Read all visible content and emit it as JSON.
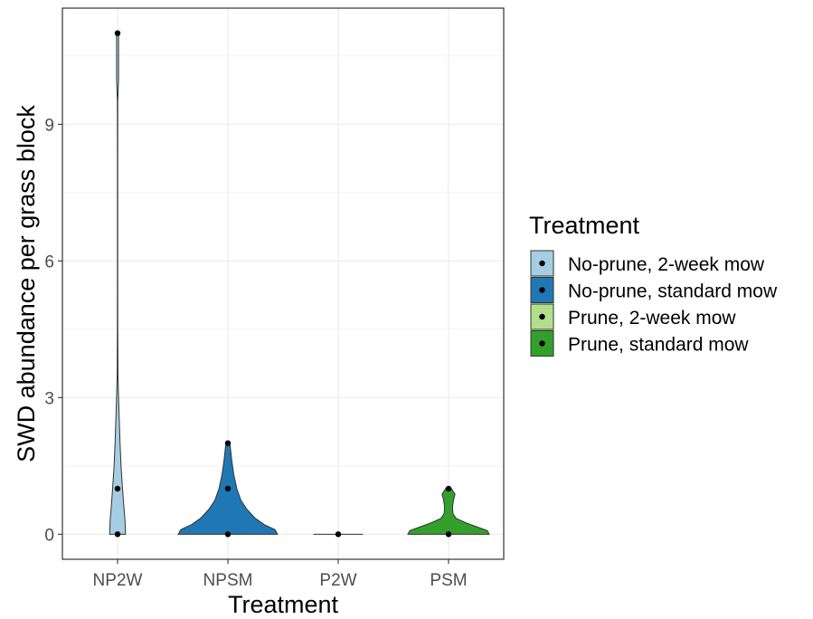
{
  "chart_data": {
    "type": "violin",
    "xlabel": "Treatment",
    "ylabel": "SWD abundance per grass block",
    "ylim": [
      -0.55,
      11.55
    ],
    "yticks": [
      0,
      3,
      6,
      9
    ],
    "categories": [
      "NP2W",
      "NPSM",
      "P2W",
      "PSM"
    ],
    "grid": true,
    "legend": {
      "title": "Treatment",
      "placement": "right",
      "entries": [
        {
          "label": "No-prune, 2-week mow",
          "color": "#a6cee3"
        },
        {
          "label": "No-prune, standard mow",
          "color": "#1f78b4"
        },
        {
          "label": "Prune, 2-week mow",
          "color": "#b2df8a"
        },
        {
          "label": "Prune, standard mow",
          "color": "#33a02c"
        }
      ]
    },
    "series": [
      {
        "category": "NP2W",
        "color": "#a6cee3",
        "points": [
          0,
          1,
          11
        ],
        "density": [
          [
            0,
            0.16
          ],
          [
            0.3,
            0.15
          ],
          [
            0.7,
            0.12
          ],
          [
            1.0,
            0.1
          ],
          [
            1.5,
            0.07
          ],
          [
            2.0,
            0.05
          ],
          [
            2.5,
            0.035
          ],
          [
            3.0,
            0.02
          ],
          [
            3.5,
            0.008
          ],
          [
            4.5,
            0.004
          ],
          [
            6,
            0.003
          ],
          [
            8,
            0.003
          ],
          [
            9.5,
            0.004
          ],
          [
            10,
            0.02
          ],
          [
            11,
            0.02
          ]
        ]
      },
      {
        "category": "NPSM",
        "color": "#1f78b4",
        "points": [
          0,
          1,
          2
        ],
        "density": [
          [
            0,
            1.0
          ],
          [
            0.1,
            0.95
          ],
          [
            0.2,
            0.75
          ],
          [
            0.35,
            0.55
          ],
          [
            0.55,
            0.38
          ],
          [
            0.75,
            0.26
          ],
          [
            1.0,
            0.18
          ],
          [
            1.3,
            0.12
          ],
          [
            1.6,
            0.08
          ],
          [
            1.8,
            0.06
          ],
          [
            2.0,
            0.04
          ]
        ]
      },
      {
        "category": "P2W",
        "color": "#b2df8a",
        "points": [
          0
        ],
        "density": [
          [
            0,
            0.5
          ],
          [
            0.0,
            0.5
          ]
        ]
      },
      {
        "category": "PSM",
        "color": "#33a02c",
        "points": [
          0,
          1
        ],
        "density": [
          [
            0,
            0.82
          ],
          [
            0.08,
            0.78
          ],
          [
            0.15,
            0.6
          ],
          [
            0.25,
            0.35
          ],
          [
            0.35,
            0.15
          ],
          [
            0.45,
            0.09
          ],
          [
            0.6,
            0.08
          ],
          [
            0.75,
            0.1
          ],
          [
            0.88,
            0.13
          ],
          [
            1.0,
            0.06
          ]
        ]
      }
    ]
  }
}
